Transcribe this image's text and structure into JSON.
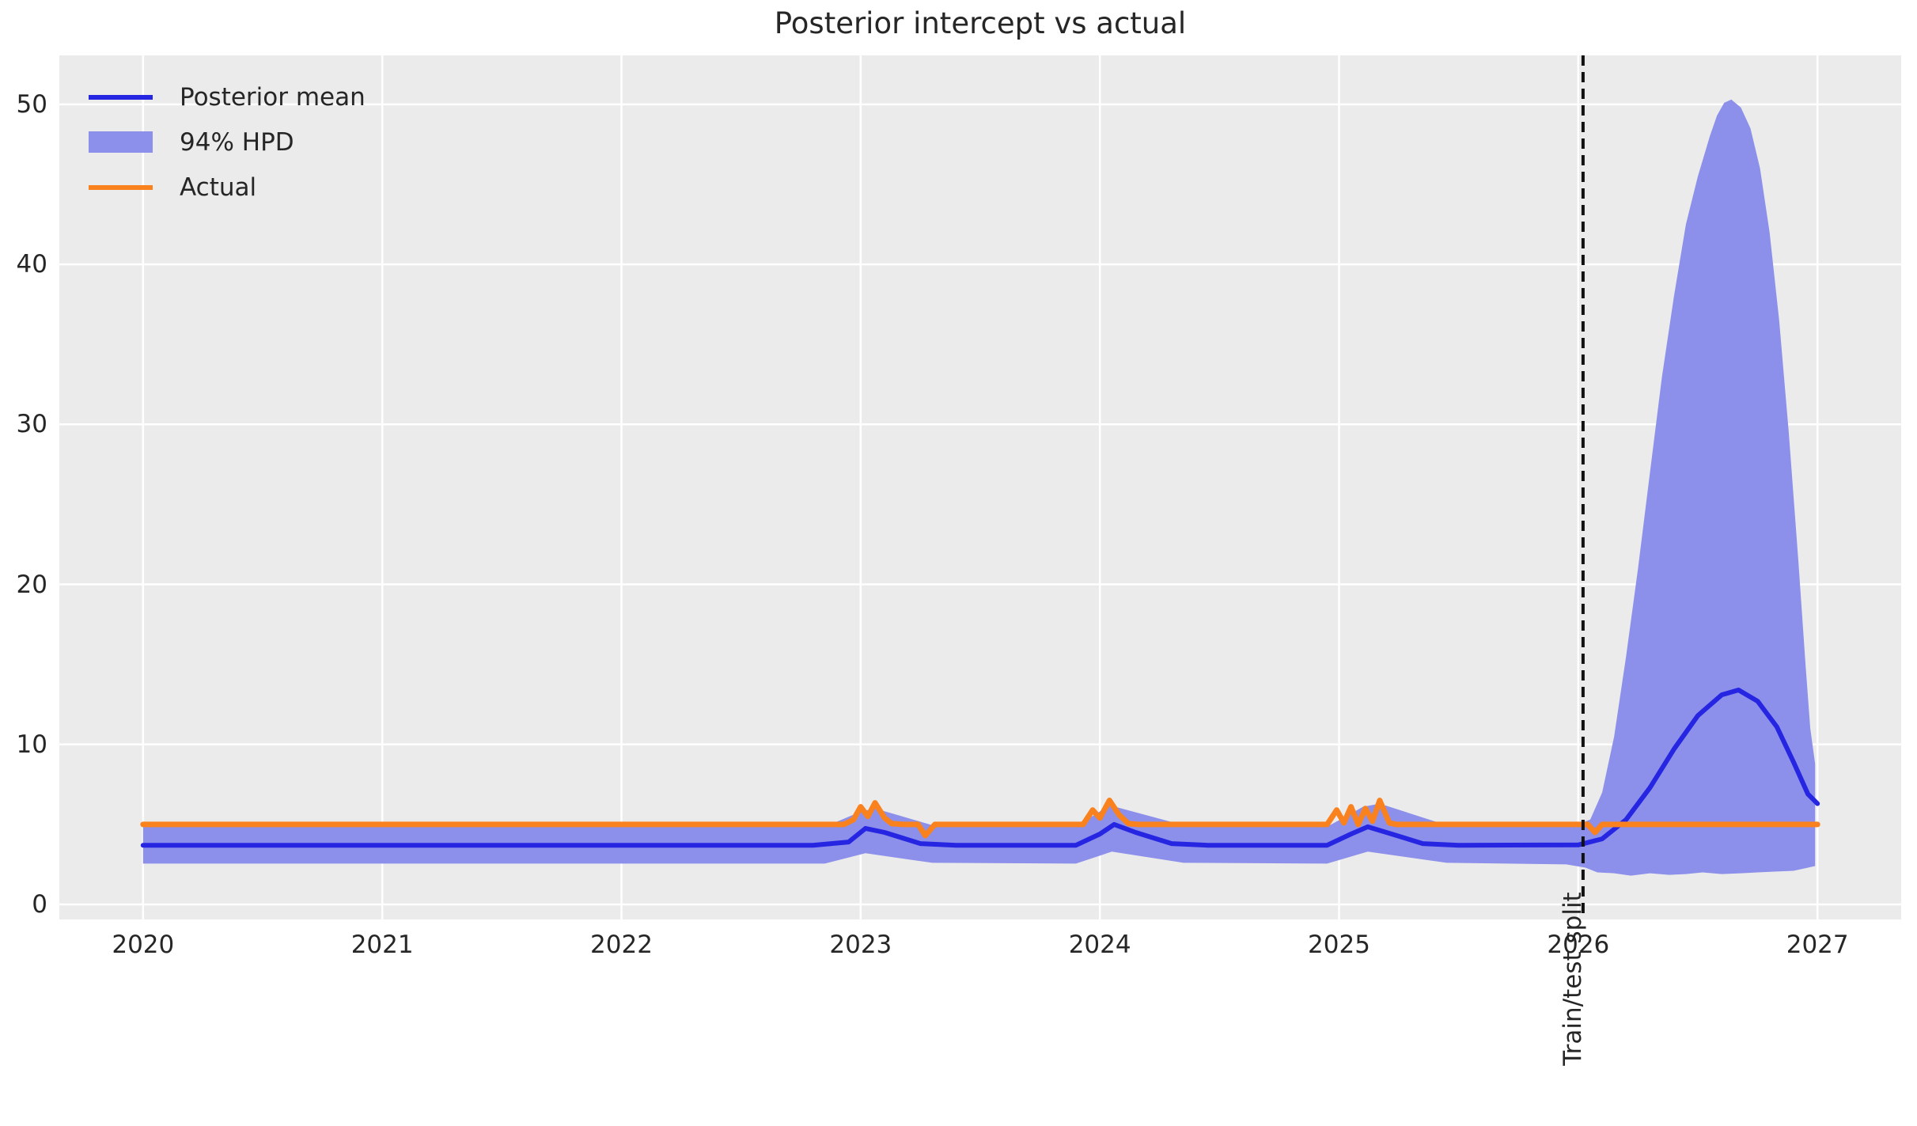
{
  "chart_data": {
    "type": "line",
    "title": "Posterior intercept vs actual",
    "xlabel": "",
    "ylabel": "",
    "grid": true,
    "legend_position": "upper left",
    "xlim": [
      2019.65,
      2027.35
    ],
    "ylim": [
      -0.94,
      53.06
    ],
    "xticks": [
      2020,
      2021,
      2022,
      2023,
      2024,
      2025,
      2026,
      2027
    ],
    "yticks": [
      0,
      10,
      20,
      30,
      40,
      50
    ],
    "colors": {
      "plot_background": "#ebebeb",
      "gridline": "#ffffff",
      "posterior_mean": "#2626e2",
      "hpd_band": "#8c90ea",
      "actual": "#f9821f",
      "split_line": "#111111",
      "text": "#262626"
    },
    "split": {
      "x": 2026.02,
      "label": "Train/test split"
    },
    "series": [
      {
        "name": "Posterior mean",
        "kind": "line",
        "color": "#2626e2",
        "stroke_width": 6,
        "points": [
          [
            2020.0,
            3.7
          ],
          [
            2022.8,
            3.7
          ],
          [
            2022.95,
            3.9
          ],
          [
            2023.02,
            4.75
          ],
          [
            2023.1,
            4.5
          ],
          [
            2023.25,
            3.8
          ],
          [
            2023.4,
            3.7
          ],
          [
            2023.9,
            3.7
          ],
          [
            2024.0,
            4.4
          ],
          [
            2024.06,
            5.0
          ],
          [
            2024.15,
            4.5
          ],
          [
            2024.3,
            3.8
          ],
          [
            2024.45,
            3.7
          ],
          [
            2024.95,
            3.7
          ],
          [
            2025.05,
            4.4
          ],
          [
            2025.12,
            4.85
          ],
          [
            2025.22,
            4.4
          ],
          [
            2025.35,
            3.8
          ],
          [
            2025.5,
            3.7
          ],
          [
            2026.0,
            3.72
          ],
          [
            2026.1,
            4.1
          ],
          [
            2026.2,
            5.3
          ],
          [
            2026.3,
            7.3
          ],
          [
            2026.4,
            9.7
          ],
          [
            2026.5,
            11.8
          ],
          [
            2026.6,
            13.1
          ],
          [
            2026.67,
            13.4
          ],
          [
            2026.75,
            12.7
          ],
          [
            2026.83,
            11.1
          ],
          [
            2026.9,
            8.9
          ],
          [
            2026.96,
            6.9
          ],
          [
            2027.0,
            6.3
          ]
        ]
      },
      {
        "name": "94% HPD",
        "kind": "band",
        "color": "#8c90ea",
        "upper": [
          [
            2020.0,
            4.85
          ],
          [
            2022.85,
            4.85
          ],
          [
            2023.0,
            5.8
          ],
          [
            2023.06,
            6.0
          ],
          [
            2023.3,
            4.95
          ],
          [
            2023.9,
            4.85
          ],
          [
            2024.04,
            6.2
          ],
          [
            2024.35,
            4.95
          ],
          [
            2024.95,
            4.85
          ],
          [
            2025.1,
            6.1
          ],
          [
            2025.17,
            6.3
          ],
          [
            2025.45,
            4.95
          ],
          [
            2025.98,
            4.9
          ],
          [
            2026.05,
            5.3
          ],
          [
            2026.1,
            7.0
          ],
          [
            2026.15,
            10.5
          ],
          [
            2026.2,
            15.5
          ],
          [
            2026.25,
            21.0
          ],
          [
            2026.3,
            27.0
          ],
          [
            2026.35,
            33.0
          ],
          [
            2026.4,
            38.0
          ],
          [
            2026.45,
            42.5
          ],
          [
            2026.5,
            45.5
          ],
          [
            2026.55,
            48.0
          ],
          [
            2026.58,
            49.3
          ],
          [
            2026.61,
            50.1
          ],
          [
            2026.64,
            50.3
          ],
          [
            2026.68,
            49.8
          ],
          [
            2026.72,
            48.5
          ],
          [
            2026.76,
            46.0
          ],
          [
            2026.8,
            42.0
          ],
          [
            2026.84,
            36.5
          ],
          [
            2026.88,
            29.5
          ],
          [
            2026.92,
            21.5
          ],
          [
            2026.95,
            15.0
          ],
          [
            2026.97,
            11.0
          ],
          [
            2026.99,
            8.8
          ]
        ],
        "lower": [
          [
            2020.0,
            2.55
          ],
          [
            2022.85,
            2.55
          ],
          [
            2023.02,
            3.2
          ],
          [
            2023.3,
            2.6
          ],
          [
            2023.9,
            2.55
          ],
          [
            2024.05,
            3.3
          ],
          [
            2024.35,
            2.6
          ],
          [
            2024.95,
            2.55
          ],
          [
            2025.12,
            3.3
          ],
          [
            2025.45,
            2.6
          ],
          [
            2025.95,
            2.5
          ],
          [
            2026.03,
            2.3
          ],
          [
            2026.08,
            2.0
          ],
          [
            2026.15,
            1.95
          ],
          [
            2026.22,
            1.8
          ],
          [
            2026.3,
            1.95
          ],
          [
            2026.38,
            1.85
          ],
          [
            2026.45,
            1.9
          ],
          [
            2026.52,
            2.0
          ],
          [
            2026.6,
            1.9
          ],
          [
            2026.68,
            1.95
          ],
          [
            2026.75,
            2.0
          ],
          [
            2026.82,
            2.05
          ],
          [
            2026.9,
            2.1
          ],
          [
            2026.99,
            2.4
          ]
        ]
      },
      {
        "name": "Actual",
        "kind": "line",
        "color": "#f9821f",
        "stroke_width": 7,
        "points": [
          [
            2020.0,
            5.0
          ],
          [
            2022.93,
            5.0
          ],
          [
            2022.97,
            5.3
          ],
          [
            2023.0,
            6.1
          ],
          [
            2023.03,
            5.5
          ],
          [
            2023.06,
            6.35
          ],
          [
            2023.1,
            5.4
          ],
          [
            2023.13,
            5.05
          ],
          [
            2023.18,
            5.0
          ],
          [
            2023.24,
            5.0
          ],
          [
            2023.27,
            4.3
          ],
          [
            2023.31,
            5.0
          ],
          [
            2023.93,
            5.0
          ],
          [
            2023.97,
            5.9
          ],
          [
            2024.0,
            5.4
          ],
          [
            2024.04,
            6.5
          ],
          [
            2024.08,
            5.6
          ],
          [
            2024.12,
            5.05
          ],
          [
            2024.16,
            5.0
          ],
          [
            2024.95,
            5.0
          ],
          [
            2024.99,
            5.9
          ],
          [
            2025.02,
            5.1
          ],
          [
            2025.05,
            6.1
          ],
          [
            2025.08,
            5.0
          ],
          [
            2025.11,
            6.0
          ],
          [
            2025.14,
            5.2
          ],
          [
            2025.17,
            6.5
          ],
          [
            2025.21,
            5.1
          ],
          [
            2025.24,
            5.0
          ],
          [
            2026.04,
            5.0
          ],
          [
            2026.07,
            4.5
          ],
          [
            2026.1,
            5.0
          ],
          [
            2027.0,
            5.0
          ]
        ]
      }
    ]
  }
}
